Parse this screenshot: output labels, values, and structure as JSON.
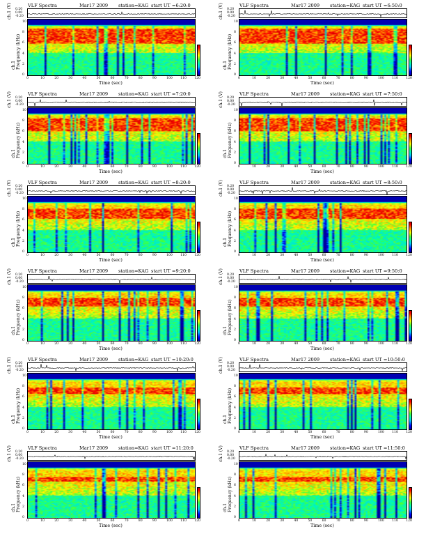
{
  "chart_data": [
    {
      "type": "heatmap",
      "title": "VLF Spectra",
      "date": "Mar17 2009",
      "station": "station=KAG",
      "start_ut": "start UT =6:20:0",
      "xlabel": "Time (sec)",
      "ylabel_wave": "ch.1 (V)",
      "ylabel_spec": "ch.1\nFrequency (kHz)",
      "colorbar_label": "log(PSD)(V²/Hz)",
      "xlim": [
        0,
        120
      ],
      "ylim_freq": [
        0,
        10
      ],
      "wave_ticks": [
        "0.20",
        "0.00",
        "-0.20"
      ],
      "x_ticks": [
        "0",
        "10",
        "20",
        "30",
        "40",
        "50",
        "60",
        "70",
        "80",
        "90",
        "100",
        "110",
        "120"
      ],
      "y_ticks": [
        "0",
        "2",
        "4",
        "6",
        "8",
        "10"
      ],
      "cbar_ticks": [
        "6",
        "4",
        "2",
        "0",
        "-2",
        "-4",
        "-6"
      ]
    },
    {
      "type": "heatmap",
      "title": "VLF Spectra",
      "date": "Mar17 2009",
      "station": "station=KAG",
      "start_ut": "start UT =6:50:0",
      "xlabel": "Time (sec)",
      "ylabel_wave": "ch.1 (V)",
      "ylabel_spec": "ch.1\nFrequency (kHz)",
      "colorbar_label": "log(PSD)(V²/Hz)",
      "xlim": [
        0,
        120
      ],
      "ylim_freq": [
        0,
        10
      ],
      "wave_ticks": [
        "0.20",
        "0.00",
        "-0.20"
      ],
      "x_ticks": [
        "0",
        "10",
        "20",
        "30",
        "40",
        "50",
        "60",
        "70",
        "80",
        "90",
        "100",
        "110",
        "120"
      ],
      "y_ticks": [
        "0",
        "2",
        "4",
        "6",
        "8",
        "10"
      ],
      "cbar_ticks": [
        "6",
        "4",
        "2",
        "0",
        "-2",
        "-4",
        "-6"
      ]
    },
    {
      "type": "heatmap",
      "title": "VLF Spectra",
      "date": "Mar17 2009",
      "station": "station=KAG",
      "start_ut": "start UT =7:20:0",
      "xlabel": "Time (sec)",
      "ylabel_wave": "ch.1 (V)",
      "ylabel_spec": "ch.1\nFrequency (kHz)",
      "colorbar_label": "log(PSD)(V²/Hz)",
      "xlim": [
        0,
        120
      ],
      "ylim_freq": [
        0,
        10
      ],
      "wave_ticks": [
        "0.20",
        "0.00",
        "-0.20"
      ],
      "x_ticks": [
        "0",
        "10",
        "20",
        "30",
        "40",
        "50",
        "60",
        "70",
        "80",
        "90",
        "100",
        "110",
        "120"
      ],
      "y_ticks": [
        "0",
        "2",
        "4",
        "6",
        "8",
        "10"
      ],
      "cbar_ticks": [
        "6",
        "4",
        "2",
        "0",
        "-2",
        "-4",
        "-6"
      ]
    },
    {
      "type": "heatmap",
      "title": "VLF Spectra",
      "date": "Mar17 2009",
      "station": "station=KAG",
      "start_ut": "start UT =7:50:0",
      "xlabel": "Time (sec)",
      "ylabel_wave": "ch.1 (V)",
      "ylabel_spec": "ch.1\nFrequency (kHz)",
      "colorbar_label": "log(PSD)(V²/Hz)",
      "xlim": [
        0,
        120
      ],
      "ylim_freq": [
        0,
        10
      ],
      "wave_ticks": [
        "0.20",
        "0.00",
        "-0.20"
      ],
      "x_ticks": [
        "0",
        "10",
        "20",
        "30",
        "40",
        "50",
        "60",
        "70",
        "80",
        "90",
        "100",
        "110",
        "120"
      ],
      "y_ticks": [
        "0",
        "2",
        "4",
        "6",
        "8",
        "10"
      ],
      "cbar_ticks": [
        "6",
        "4",
        "2",
        "0",
        "-2",
        "-4",
        "-6"
      ]
    },
    {
      "type": "heatmap",
      "title": "VLF Spectra",
      "date": "Mar17 2009",
      "station": "station=KAG",
      "start_ut": "start UT =8:20:0",
      "xlabel": "Time (sec)",
      "ylabel_wave": "ch.1 (V)",
      "ylabel_spec": "ch.1\nFrequency (kHz)",
      "colorbar_label": "log(PSD)(V²/Hz)",
      "xlim": [
        0,
        120
      ],
      "ylim_freq": [
        0,
        10
      ],
      "wave_ticks": [
        "0.20",
        "0.00",
        "-0.20"
      ],
      "x_ticks": [
        "0",
        "10",
        "20",
        "30",
        "40",
        "50",
        "60",
        "70",
        "80",
        "90",
        "100",
        "110",
        "120"
      ],
      "y_ticks": [
        "0",
        "2",
        "4",
        "6",
        "8",
        "10"
      ],
      "cbar_ticks": [
        "6",
        "4",
        "2",
        "0",
        "-2",
        "-4",
        "-6"
      ]
    },
    {
      "type": "heatmap",
      "title": "VLF Spectra",
      "date": "Mar17 2009",
      "station": "station=KAG",
      "start_ut": "start UT =8:50:0",
      "xlabel": "Time (sec)",
      "ylabel_wave": "ch.1 (V)",
      "ylabel_spec": "ch.1\nFrequency (kHz)",
      "colorbar_label": "log(PSD)(V²/Hz)",
      "xlim": [
        0,
        120
      ],
      "ylim_freq": [
        0,
        10
      ],
      "wave_ticks": [
        "0.20",
        "0.00",
        "-0.20"
      ],
      "x_ticks": [
        "0",
        "10",
        "20",
        "30",
        "40",
        "50",
        "60",
        "70",
        "80",
        "90",
        "100",
        "110",
        "120"
      ],
      "y_ticks": [
        "0",
        "2",
        "4",
        "6",
        "8",
        "10"
      ],
      "cbar_ticks": [
        "6",
        "4",
        "2",
        "0",
        "-2",
        "-4",
        "-6"
      ]
    },
    {
      "type": "heatmap",
      "title": "VLF Spectra",
      "date": "Mar17 2009",
      "station": "station=KAG",
      "start_ut": "start UT =9:20:0",
      "xlabel": "Time (sec)",
      "ylabel_wave": "ch.1 (V)",
      "ylabel_spec": "ch.1\nFrequency (kHz)",
      "colorbar_label": "log(PSD)(V²/Hz)",
      "xlim": [
        0,
        120
      ],
      "ylim_freq": [
        0,
        10
      ],
      "wave_ticks": [
        "0.20",
        "0.00",
        "-0.20"
      ],
      "x_ticks": [
        "0",
        "10",
        "20",
        "30",
        "40",
        "50",
        "60",
        "70",
        "80",
        "90",
        "100",
        "110",
        "120"
      ],
      "y_ticks": [
        "0",
        "2",
        "4",
        "6",
        "8",
        "10"
      ],
      "cbar_ticks": [
        "6",
        "4",
        "2",
        "0",
        "-2",
        "-4",
        "-6"
      ]
    },
    {
      "type": "heatmap",
      "title": "VLF Spectra",
      "date": "Mar17 2009",
      "station": "station=KAG",
      "start_ut": "start UT =9:50:0",
      "xlabel": "Time (sec)",
      "ylabel_wave": "ch.1 (V)",
      "ylabel_spec": "ch.1\nFrequency (kHz)",
      "colorbar_label": "log(PSD)(V²/Hz)",
      "xlim": [
        0,
        120
      ],
      "ylim_freq": [
        0,
        10
      ],
      "wave_ticks": [
        "0.20",
        "0.00",
        "-0.20"
      ],
      "x_ticks": [
        "0",
        "10",
        "20",
        "30",
        "40",
        "50",
        "60",
        "70",
        "80",
        "90",
        "100",
        "110",
        "120"
      ],
      "y_ticks": [
        "0",
        "2",
        "4",
        "6",
        "8",
        "10"
      ],
      "cbar_ticks": [
        "6",
        "4",
        "2",
        "0",
        "-2",
        "-4",
        "-6"
      ]
    },
    {
      "type": "heatmap",
      "title": "VLF Spectra",
      "date": "Mar17 2009",
      "station": "station=KAG",
      "start_ut": "start UT =10:20:0",
      "xlabel": "Time (sec)",
      "ylabel_wave": "ch.1 (V)",
      "ylabel_spec": "ch.1\nFrequency (kHz)",
      "colorbar_label": "log(PSD)(V²/Hz)",
      "xlim": [
        0,
        120
      ],
      "ylim_freq": [
        0,
        10
      ],
      "wave_ticks": [
        "0.20",
        "0.00",
        "-0.20"
      ],
      "x_ticks": [
        "0",
        "10",
        "20",
        "30",
        "40",
        "50",
        "60",
        "70",
        "80",
        "90",
        "100",
        "110",
        "120"
      ],
      "y_ticks": [
        "0",
        "2",
        "4",
        "6",
        "8",
        "10"
      ],
      "cbar_ticks": [
        "6",
        "4",
        "2",
        "0",
        "-2",
        "-4",
        "-6"
      ]
    },
    {
      "type": "heatmap",
      "title": "VLF Spectra",
      "date": "Mar17 2009",
      "station": "station=KAG",
      "start_ut": "start UT =10:50:0",
      "xlabel": "Time (sec)",
      "ylabel_wave": "ch.1 (V)",
      "ylabel_spec": "ch.1\nFrequency (kHz)",
      "colorbar_label": "log(PSD)(V²/Hz)",
      "xlim": [
        0,
        120
      ],
      "ylim_freq": [
        0,
        10
      ],
      "wave_ticks": [
        "0.20",
        "0.00",
        "-0.20"
      ],
      "x_ticks": [
        "0",
        "10",
        "20",
        "30",
        "40",
        "50",
        "60",
        "70",
        "80",
        "90",
        "100",
        "110",
        "120"
      ],
      "y_ticks": [
        "0",
        "2",
        "4",
        "6",
        "8",
        "10"
      ],
      "cbar_ticks": [
        "6",
        "4",
        "2",
        "0",
        "-2",
        "-4",
        "-6"
      ]
    },
    {
      "type": "heatmap",
      "title": "VLF Spectra",
      "date": "Mar17 2009",
      "station": "station=KAG",
      "start_ut": "start UT =11:20:0",
      "xlabel": "Time (sec)",
      "ylabel_wave": "ch.1 (V)",
      "ylabel_spec": "ch.1\nFrequency (kHz)",
      "colorbar_label": "log(PSD)(V²/Hz)",
      "xlim": [
        0,
        120
      ],
      "ylim_freq": [
        0,
        10
      ],
      "wave_ticks": [
        "0.20",
        "0.00",
        "-0.20"
      ],
      "x_ticks": [
        "0",
        "10",
        "20",
        "30",
        "40",
        "50",
        "60",
        "70",
        "80",
        "90",
        "100",
        "110",
        "120"
      ],
      "y_ticks": [
        "0",
        "2",
        "4",
        "6",
        "8",
        "10"
      ],
      "cbar_ticks": [
        "6",
        "4",
        "2",
        "0",
        "-2",
        "-4",
        "-6"
      ]
    },
    {
      "type": "heatmap",
      "title": "VLF Spectra",
      "date": "Mar17 2009",
      "station": "station=KAG",
      "start_ut": "start UT =11:50:0",
      "xlabel": "Time (sec)",
      "ylabel_wave": "ch.1 (V)",
      "ylabel_spec": "ch.1\nFrequency (kHz)",
      "colorbar_label": "log(PSD)(V²/Hz)",
      "xlim": [
        0,
        120
      ],
      "ylim_freq": [
        0,
        10
      ],
      "wave_ticks": [
        "0.20",
        "0.00",
        "-0.20"
      ],
      "x_ticks": [
        "0",
        "10",
        "20",
        "30",
        "40",
        "50",
        "60",
        "70",
        "80",
        "90",
        "100",
        "110",
        "120"
      ],
      "y_ticks": [
        "0",
        "2",
        "4",
        "6",
        "8",
        "10"
      ],
      "cbar_ticks": [
        "6",
        "4",
        "2",
        "0",
        "-2",
        "-4",
        "-6"
      ]
    }
  ],
  "colors": {
    "deep": "#0000a0",
    "low": "#00c8ff",
    "mid": "#40ff40",
    "high": "#ffff00",
    "peak": "#ff0000"
  }
}
